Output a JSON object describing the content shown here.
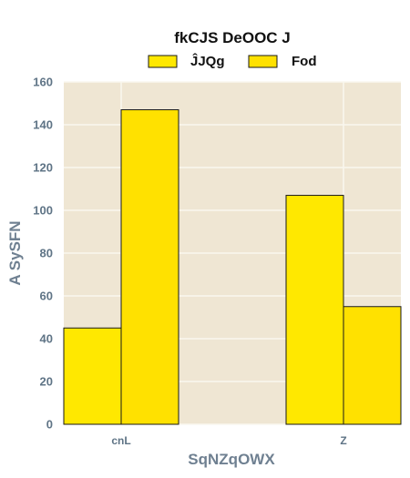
{
  "chart_data": {
    "type": "bar",
    "title": "fkCJS DeOOC J",
    "xlabel": "SqNZqOWX",
    "ylabel": "A SySFN",
    "categories": [
      "cnL",
      "Z"
    ],
    "series": [
      {
        "name": "ĴJQg",
        "values": [
          45,
          107
        ],
        "color": "#FFE800"
      },
      {
        "name": "Fod",
        "values": [
          147,
          55
        ],
        "color": "#FFE100"
      }
    ],
    "ylim": [
      0,
      160
    ],
    "yticks": [
      0,
      20,
      40,
      60,
      80,
      100,
      120,
      140,
      160
    ],
    "grid": true,
    "legend_position": "top-center",
    "background_color": "#EFE6D3",
    "grid_color": "#FAF7EF",
    "bar_edge_color": "#1a1a1a"
  }
}
